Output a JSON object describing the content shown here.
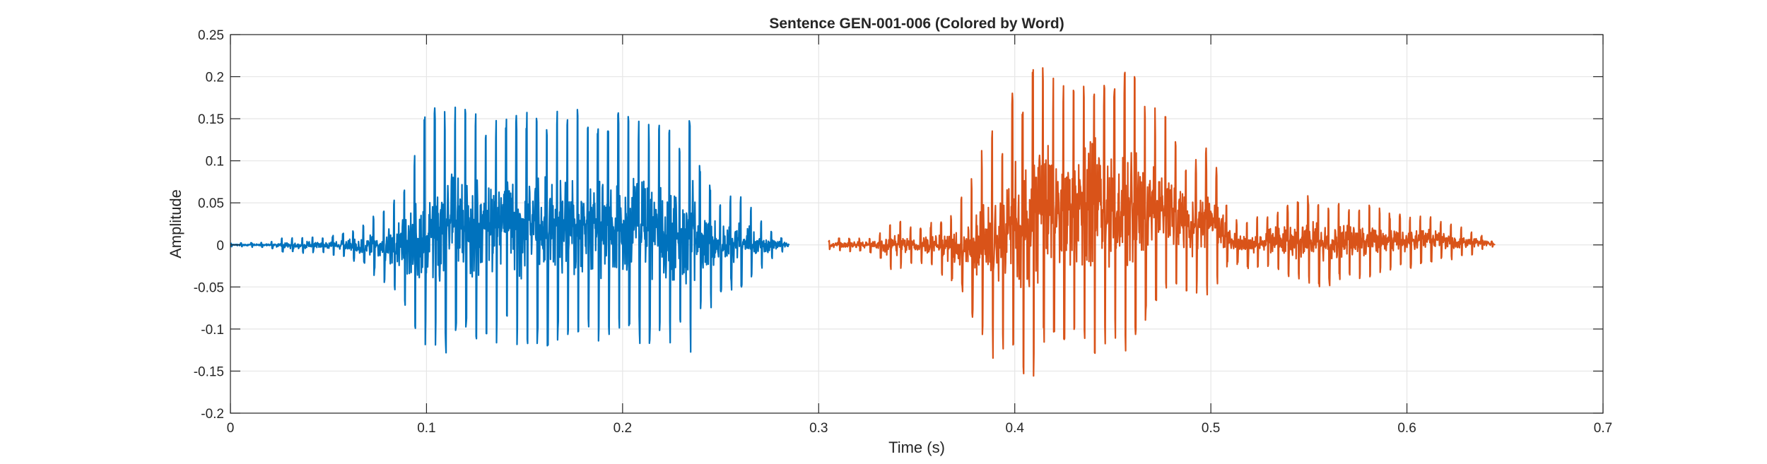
{
  "chart_data": {
    "type": "line",
    "title": "Sentence GEN-001-006 (Colored by Word)",
    "xlabel": "Time (s)",
    "ylabel": "Amplitude",
    "xlim": [
      0,
      0.7
    ],
    "ylim": [
      -0.2,
      0.25
    ],
    "xticks": [
      0,
      0.1,
      0.2,
      0.3,
      0.4,
      0.5,
      0.6,
      0.7
    ],
    "xtick_labels": [
      "0",
      "0.1",
      "0.2",
      "0.3",
      "0.4",
      "0.5",
      "0.6",
      "0.7"
    ],
    "yticks": [
      -0.2,
      -0.15,
      -0.1,
      -0.05,
      0,
      0.05,
      0.1,
      0.15,
      0.2,
      0.25
    ],
    "ytick_labels": [
      "-0.2",
      "-0.15",
      "-0.1",
      "-0.05",
      "0",
      "0.05",
      "0.1",
      "0.15",
      "0.2",
      "0.25"
    ],
    "grid": true,
    "series": [
      {
        "color": "#0072BD",
        "x": [
          0,
          0.01,
          0.02,
          0.025,
          0.03,
          0.04,
          0.05,
          0.06,
          0.065,
          0.07,
          0.075,
          0.08,
          0.085,
          0.09,
          0.093,
          0.096,
          0.1,
          0.105,
          0.11,
          0.116,
          0.12,
          0.13,
          0.14,
          0.15,
          0.16,
          0.17,
          0.18,
          0.185,
          0.19,
          0.2,
          0.21,
          0.22,
          0.23,
          0.236,
          0.24,
          0.25,
          0.26,
          0.265,
          0.27,
          0.28,
          0.285
        ],
        "y_max": [
          0.002,
          0.003,
          0.003,
          0.008,
          0.008,
          0.01,
          0.01,
          0.015,
          0.02,
          0.03,
          0.04,
          0.05,
          0.06,
          0.08,
          0.12,
          0.11,
          0.17,
          0.17,
          0.17,
          0.19,
          0.16,
          0.16,
          0.16,
          0.16,
          0.16,
          0.16,
          0.17,
          0.17,
          0.17,
          0.16,
          0.16,
          0.15,
          0.13,
          0.16,
          0.09,
          0.06,
          0.06,
          0.05,
          0.03,
          0.01,
          0.005
        ],
        "y_min": [
          -0.002,
          -0.003,
          -0.003,
          -0.008,
          -0.01,
          -0.01,
          -0.012,
          -0.015,
          -0.025,
          -0.03,
          -0.04,
          -0.05,
          -0.06,
          -0.08,
          -0.11,
          -0.12,
          -0.13,
          -0.13,
          -0.13,
          -0.12,
          -0.12,
          -0.12,
          -0.12,
          -0.12,
          -0.12,
          -0.12,
          -0.12,
          -0.12,
          -0.12,
          -0.12,
          -0.12,
          -0.12,
          -0.12,
          -0.13,
          -0.09,
          -0.06,
          -0.05,
          -0.05,
          -0.03,
          -0.01,
          -0.005
        ]
      },
      {
        "color": "#D95319",
        "x": [
          0.305,
          0.31,
          0.32,
          0.33,
          0.335,
          0.34,
          0.35,
          0.36,
          0.37,
          0.38,
          0.39,
          0.395,
          0.4,
          0.405,
          0.41,
          0.415,
          0.42,
          0.43,
          0.44,
          0.45,
          0.46,
          0.47,
          0.48,
          0.49,
          0.5,
          0.51,
          0.52,
          0.53,
          0.54,
          0.55,
          0.56,
          0.57,
          0.58,
          0.59,
          0.6,
          0.61,
          0.62,
          0.63,
          0.64,
          0.645
        ],
        "y_max": [
          0.005,
          0.008,
          0.008,
          0.01,
          0.03,
          0.03,
          0.02,
          0.03,
          0.04,
          0.1,
          0.15,
          0.12,
          0.2,
          0.19,
          0.22,
          0.22,
          0.2,
          0.2,
          0.23,
          0.2,
          0.21,
          0.17,
          0.15,
          0.1,
          0.12,
          0.03,
          0.03,
          0.04,
          0.05,
          0.06,
          0.05,
          0.05,
          0.05,
          0.04,
          0.035,
          0.035,
          0.03,
          0.02,
          0.01,
          0.002
        ],
        "y_min": [
          -0.005,
          -0.008,
          -0.008,
          -0.01,
          -0.03,
          -0.03,
          -0.02,
          -0.03,
          -0.05,
          -0.1,
          -0.14,
          -0.12,
          -0.13,
          -0.16,
          -0.16,
          -0.12,
          -0.12,
          -0.12,
          -0.13,
          -0.12,
          -0.13,
          -0.07,
          -0.06,
          -0.06,
          -0.06,
          -0.02,
          -0.03,
          -0.03,
          -0.04,
          -0.05,
          -0.05,
          -0.04,
          -0.04,
          -0.03,
          -0.03,
          -0.02,
          -0.02,
          -0.015,
          -0.005,
          -0.002
        ]
      }
    ]
  }
}
